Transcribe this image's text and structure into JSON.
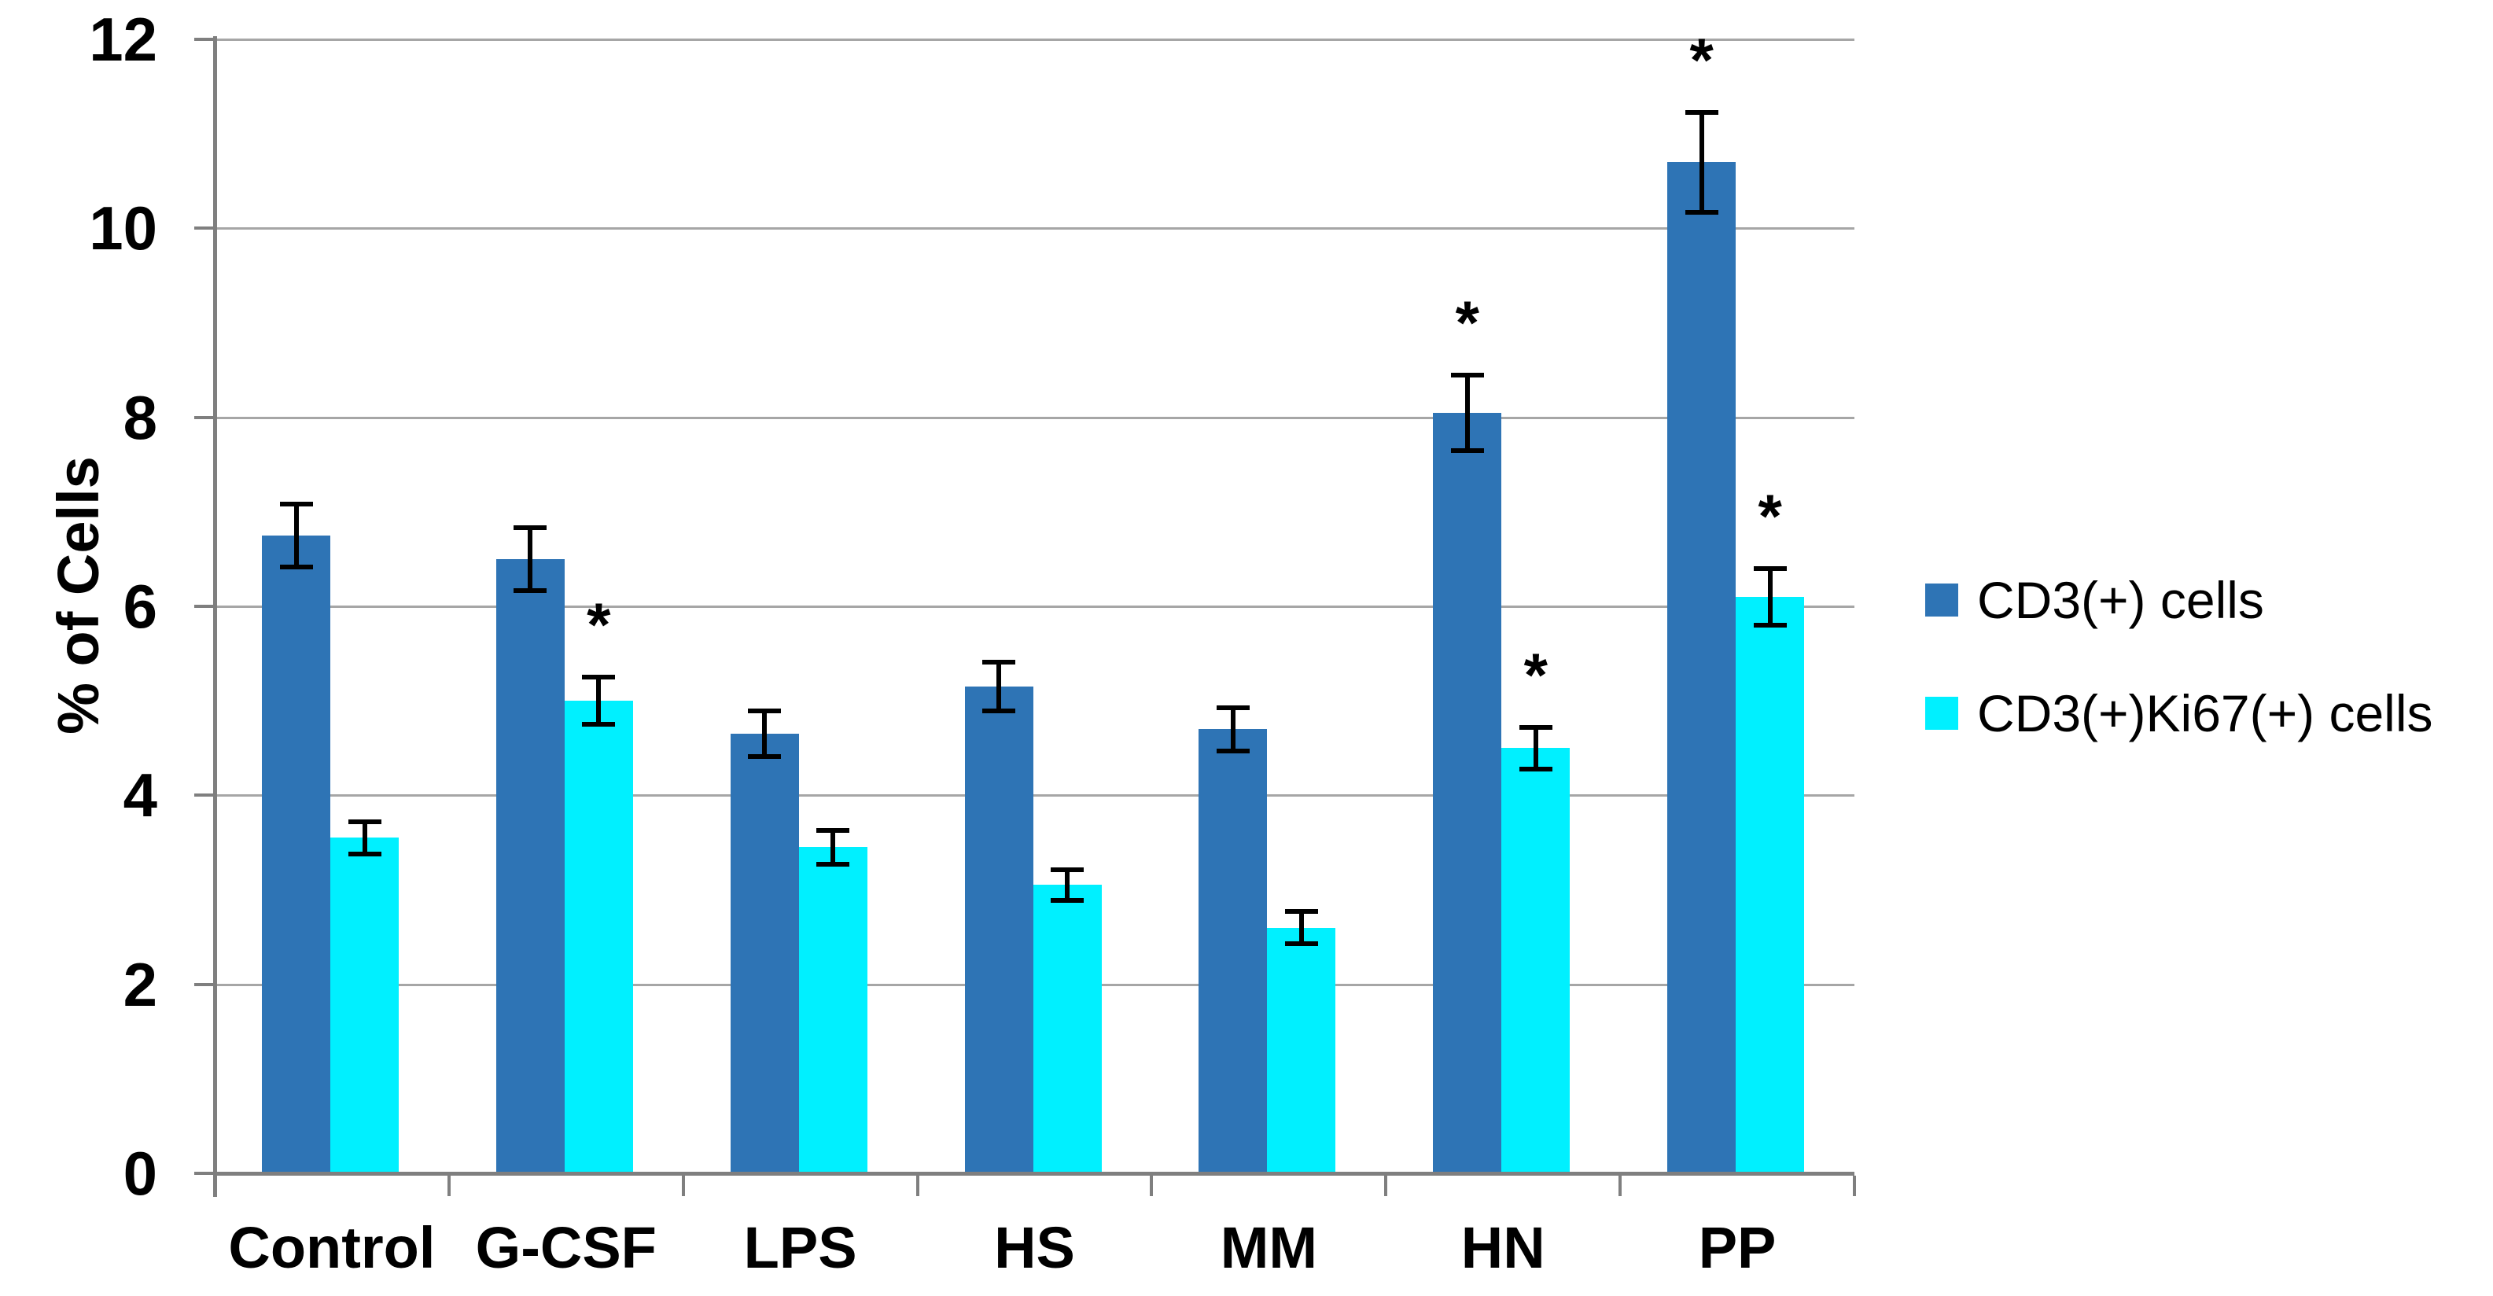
{
  "chart_data": {
    "type": "bar",
    "title": "",
    "ylabel": "% of Cells",
    "xlabel": "",
    "ylim": [
      0,
      12
    ],
    "yticks": [
      0,
      2,
      4,
      6,
      8,
      10,
      12
    ],
    "grid": true,
    "legend_position": "right",
    "significance_marker": "*",
    "categories": [
      "Control",
      "G-CSF",
      "LPS",
      "HS",
      "MM",
      "HN",
      "PP"
    ],
    "series": [
      {
        "name": "CD3(+) cells",
        "color": "#2e74b5",
        "values": [
          6.75,
          6.5,
          4.65,
          5.15,
          4.7,
          8.05,
          10.7
        ],
        "errors": [
          0.33,
          0.33,
          0.24,
          0.26,
          0.23,
          0.4,
          0.53
        ],
        "significant": [
          false,
          false,
          false,
          false,
          false,
          true,
          true
        ]
      },
      {
        "name": "CD3(+)Ki67(+) cells",
        "color": "#00f0ff",
        "values": [
          3.55,
          5.0,
          3.45,
          3.05,
          2.6,
          4.5,
          6.1
        ],
        "errors": [
          0.17,
          0.25,
          0.18,
          0.16,
          0.17,
          0.22,
          0.3
        ],
        "significant": [
          false,
          true,
          false,
          false,
          false,
          true,
          true
        ]
      }
    ]
  },
  "style": {
    "background": "#ffffff",
    "axis_color": "#7f7f7f",
    "gridline_color": "#a6a6a6",
    "error_bar_color": "#000000",
    "text_color": "#000000"
  }
}
